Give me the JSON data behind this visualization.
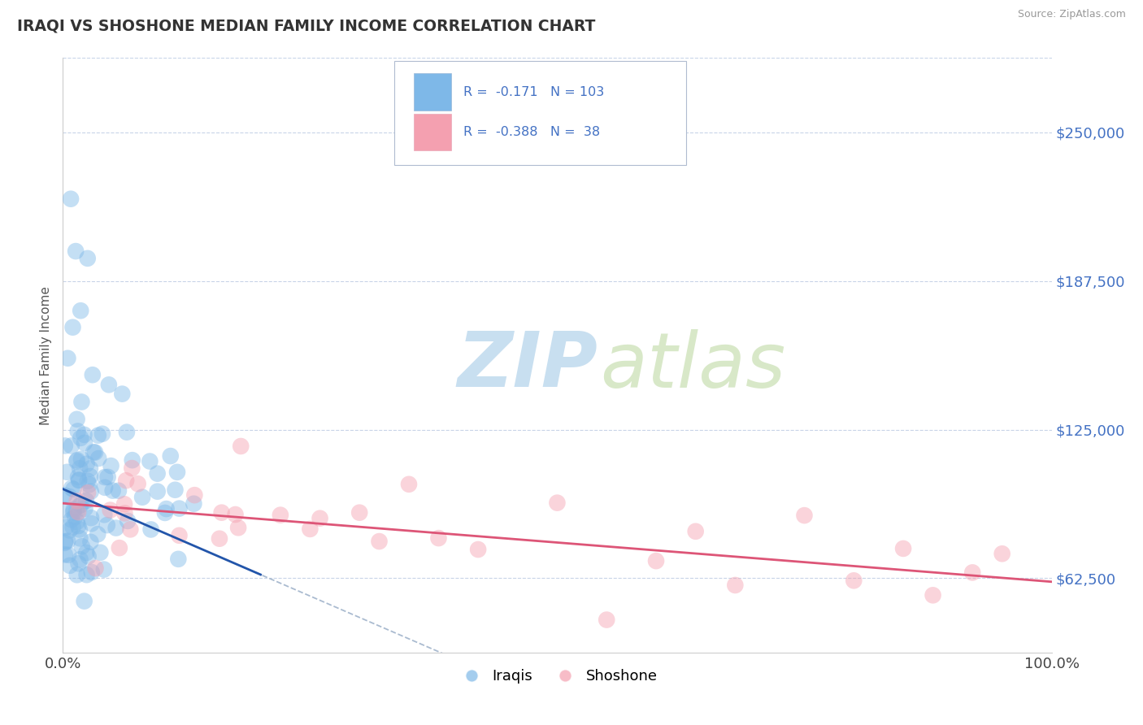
{
  "title": "IRAQI VS SHOSHONE MEDIAN FAMILY INCOME CORRELATION CHART",
  "source_text": "Source: ZipAtlas.com",
  "ylabel": "Median Family Income",
  "xlim": [
    0.0,
    1.0
  ],
  "ylim": [
    31250,
    281250
  ],
  "yticks": [
    62500,
    125000,
    187500,
    250000
  ],
  "ytick_labels": [
    "$62,500",
    "$125,000",
    "$187,500",
    "$250,000"
  ],
  "xticks": [
    0.0,
    1.0
  ],
  "xtick_labels": [
    "0.0%",
    "100.0%"
  ],
  "iraqis_color": "#7eb8e8",
  "shoshone_color": "#f4a0b0",
  "iraqis_R": -0.171,
  "iraqis_N": 103,
  "shoshone_R": -0.388,
  "shoshone_N": 38,
  "regression_blue_color": "#2255aa",
  "regression_pink_color": "#dd5577",
  "regression_dashed_color": "#aabbd0",
  "watermark_zip": "ZIP",
  "watermark_atlas": "atlas",
  "watermark_color_zip": "#c8dff0",
  "watermark_color_atlas": "#d8e8c8",
  "legend_iraqis": "Iraqis",
  "legend_shoshone": "Shoshone",
  "background_color": "#ffffff",
  "tick_color": "#4472c4",
  "title_color": "#333333",
  "source_color": "#999999"
}
